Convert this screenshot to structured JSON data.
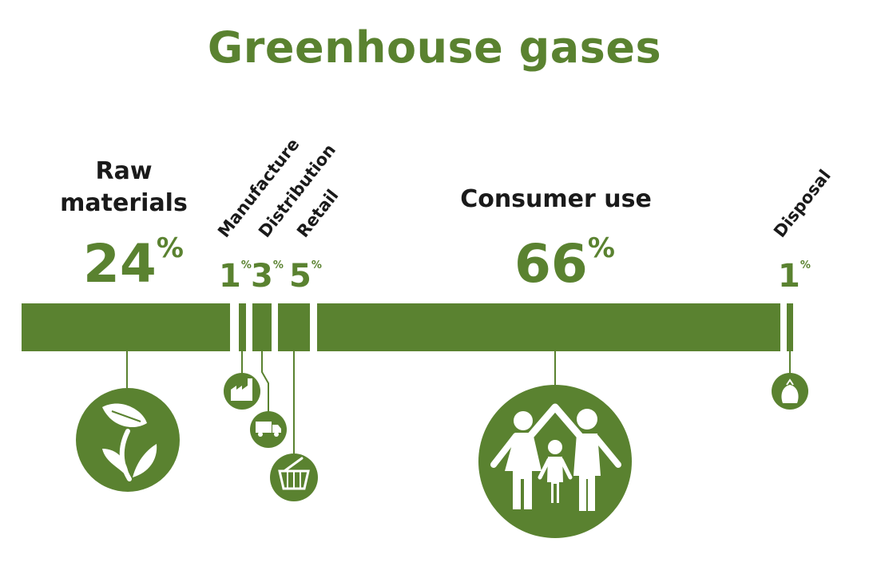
{
  "title": "Greenhouse gases",
  "colors": {
    "accent": "#5a8230",
    "text": "#1a1a1a",
    "background": "#ffffff"
  },
  "chart_data": {
    "type": "bar",
    "orientation": "horizontal-stacked",
    "title": "Greenhouse gases",
    "categories": [
      "Raw materials",
      "Manufacture",
      "Distribution",
      "Retail",
      "Consumer use",
      "Disposal"
    ],
    "values": [
      24,
      1,
      3,
      5,
      66,
      1
    ],
    "value_labels": [
      "24",
      "1",
      "3",
      "5",
      "66",
      "1"
    ],
    "unit": "%",
    "icons": [
      "leaf-icon",
      "factory-icon",
      "truck-icon",
      "basket-icon",
      "family-icon",
      "bag-icon"
    ]
  },
  "labels": {
    "raw_materials": "Raw\nmaterials",
    "manufacture": "Manufacture",
    "distribution": "Distribution",
    "retail": "Retail",
    "consumer_use": "Consumer use",
    "disposal": "Disposal"
  }
}
